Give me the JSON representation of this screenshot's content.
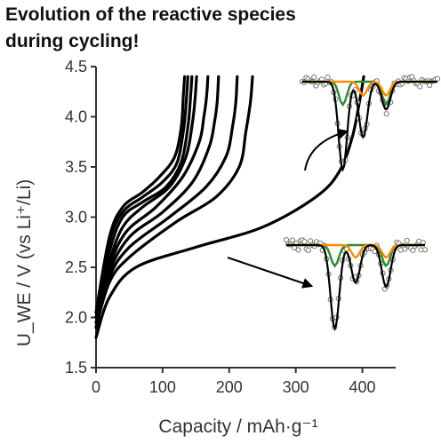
{
  "title_lines": [
    "Evolution of the reactive species",
    "during cycling!"
  ],
  "chart_data": {
    "type": "line",
    "title": "Evolution of the reactive species during cycling!",
    "xlabel": "Capacity / mAh·g⁻¹",
    "ylabel": "U_WE / V (vs Li⁺/Li)",
    "xlim": [
      0,
      450
    ],
    "ylim": [
      1.5,
      4.5
    ],
    "xticks": [
      0,
      100,
      200,
      300,
      400
    ],
    "yticks": [
      1.5,
      2.0,
      2.5,
      3.0,
      3.5,
      4.0,
      4.5
    ],
    "x_tick_labels": [
      "0",
      "100",
      "200",
      "300",
      "400"
    ],
    "y_tick_labels": [
      "1.5",
      "2.0",
      "2.5",
      "3.0",
      "3.5",
      "4.0",
      "4.5"
    ],
    "series": [
      {
        "values": [
          [
            0,
            1.8
          ],
          [
            20,
            2.2
          ],
          [
            60,
            2.5
          ],
          [
            150,
            2.7
          ],
          [
            250,
            2.9
          ],
          [
            330,
            3.2
          ],
          [
            365,
            3.45
          ],
          [
            385,
            3.8
          ],
          [
            397,
            4.2
          ],
          [
            402,
            4.4
          ]
        ]
      },
      {
        "values": [
          [
            0,
            1.9
          ],
          [
            20,
            2.35
          ],
          [
            50,
            2.6
          ],
          [
            120,
            2.95
          ],
          [
            180,
            3.2
          ],
          [
            215,
            3.5
          ],
          [
            225,
            3.85
          ],
          [
            232,
            4.15
          ],
          [
            235,
            4.4
          ]
        ]
      },
      {
        "values": [
          [
            0,
            1.9
          ],
          [
            20,
            2.4
          ],
          [
            50,
            2.7
          ],
          [
            110,
            3.0
          ],
          [
            165,
            3.3
          ],
          [
            195,
            3.6
          ],
          [
            205,
            3.9
          ],
          [
            210,
            4.15
          ],
          [
            212,
            4.4
          ]
        ]
      },
      {
        "values": [
          [
            0,
            1.9
          ],
          [
            20,
            2.45
          ],
          [
            50,
            2.8
          ],
          [
            100,
            3.05
          ],
          [
            145,
            3.35
          ],
          [
            170,
            3.7
          ],
          [
            178,
            3.95
          ],
          [
            182,
            4.15
          ],
          [
            184,
            4.4
          ]
        ]
      },
      {
        "values": [
          [
            0,
            1.95
          ],
          [
            20,
            2.5
          ],
          [
            45,
            2.85
          ],
          [
            90,
            3.1
          ],
          [
            130,
            3.4
          ],
          [
            155,
            3.75
          ],
          [
            162,
            4.0
          ],
          [
            166,
            4.2
          ],
          [
            168,
            4.4
          ]
        ]
      },
      {
        "values": [
          [
            0,
            2.0
          ],
          [
            20,
            2.55
          ],
          [
            40,
            2.9
          ],
          [
            70,
            3.1
          ],
          [
            110,
            3.3
          ],
          [
            135,
            3.6
          ],
          [
            145,
            3.95
          ],
          [
            149,
            4.2
          ],
          [
            151,
            4.4
          ]
        ]
      },
      {
        "values": [
          [
            0,
            2.0
          ],
          [
            20,
            2.65
          ],
          [
            40,
            3.0
          ],
          [
            70,
            3.15
          ],
          [
            105,
            3.3
          ],
          [
            128,
            3.55
          ],
          [
            138,
            3.9
          ],
          [
            142,
            4.2
          ],
          [
            144,
            4.4
          ]
        ]
      },
      {
        "values": [
          [
            0,
            2.05
          ],
          [
            20,
            2.75
          ],
          [
            40,
            3.05
          ],
          [
            70,
            3.2
          ],
          [
            100,
            3.35
          ],
          [
            122,
            3.55
          ],
          [
            132,
            3.9
          ],
          [
            136,
            4.2
          ],
          [
            138,
            4.4
          ]
        ]
      },
      {
        "values": [
          [
            0,
            2.05
          ],
          [
            20,
            2.8
          ],
          [
            40,
            3.1
          ],
          [
            70,
            3.25
          ],
          [
            95,
            3.4
          ],
          [
            118,
            3.6
          ],
          [
            128,
            3.9
          ],
          [
            131,
            4.2
          ],
          [
            133,
            4.4
          ]
        ]
      }
    ],
    "grid": false,
    "legend": "none",
    "line_color": "#000000",
    "insets": [
      {
        "name": "inset-spectrum-upper",
        "component_colors": [
          "#2e8b2e",
          "#ff8c00"
        ],
        "fit_color": "#000000",
        "dips": [
          0.3,
          0.45,
          0.62
        ],
        "dip_depths": [
          0.95,
          0.6,
          0.3
        ]
      },
      {
        "name": "inset-spectrum-lower",
        "component_colors": [
          "#2e8b2e",
          "#ff8c00"
        ],
        "fit_color": "#000000",
        "dips": [
          0.35,
          0.5,
          0.72
        ],
        "dip_depths": [
          1.0,
          0.45,
          0.5
        ]
      }
    ]
  }
}
